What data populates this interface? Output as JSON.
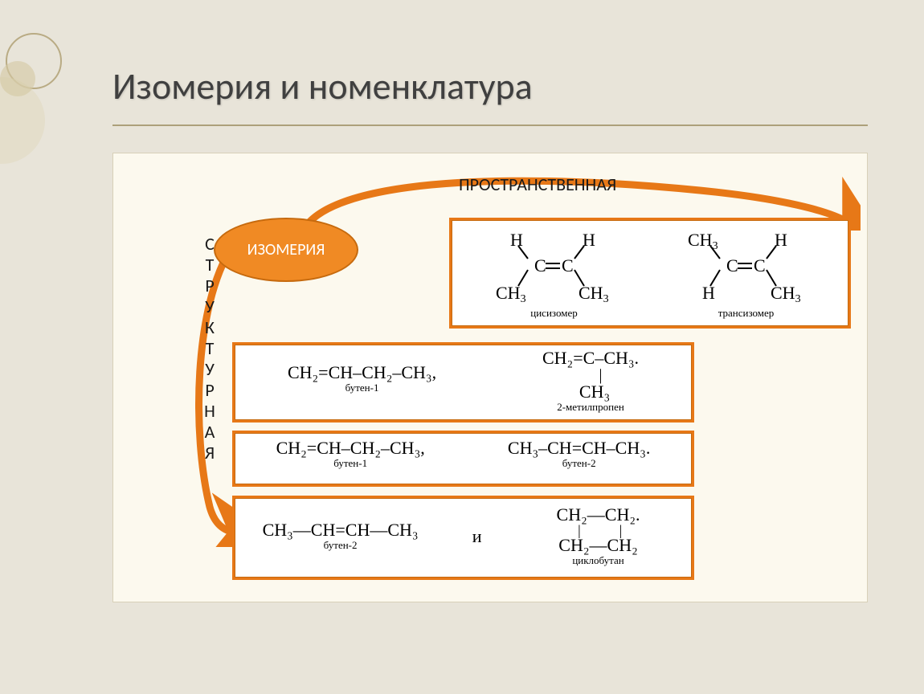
{
  "colors": {
    "slide_bg": "#e8e4d9",
    "content_bg": "#fcf9ee",
    "accent": "#f08a24",
    "accent_dark": "#c66a0e",
    "title_text": "#404040",
    "underline": "#aca07a"
  },
  "title": "Изомерия и номенклатура",
  "node_label": "ИЗОМЕРИЯ",
  "spatial_label": "ПРОСТРАНСТВЕННАЯ",
  "structural_label": "СТРУКТУРНАЯ",
  "spatial_panel": {
    "cis_caption": "цисизомер",
    "trans_caption": "трансизомер",
    "groups": {
      "H": "H",
      "CH3": "CH",
      "sub3": "3"
    }
  },
  "struct_panel_1": {
    "left_formula": "CH₂=CH–CH₂–CH₃,",
    "left_caption": "бутен-1",
    "right_line1": "CH₂=C–CH₃.",
    "right_line2_prefix": "|",
    "right_line2": "CH₃",
    "right_caption": "2-метилпропен"
  },
  "struct_panel_2": {
    "left_formula": "CH₂=CH–CH₂–CH₃,",
    "left_caption": "бутен-1",
    "right_formula": "CH₃–CH=CH–CH₃.",
    "right_caption": "бутен-2"
  },
  "struct_panel_3": {
    "left_formula": "CH₃—CH=CH—CH₃",
    "left_caption": "бутен-2",
    "connector": "и",
    "right_top": "CH₂—CH₂.",
    "right_bot": "CH₂—CH₂",
    "right_caption": "циклобутан"
  }
}
